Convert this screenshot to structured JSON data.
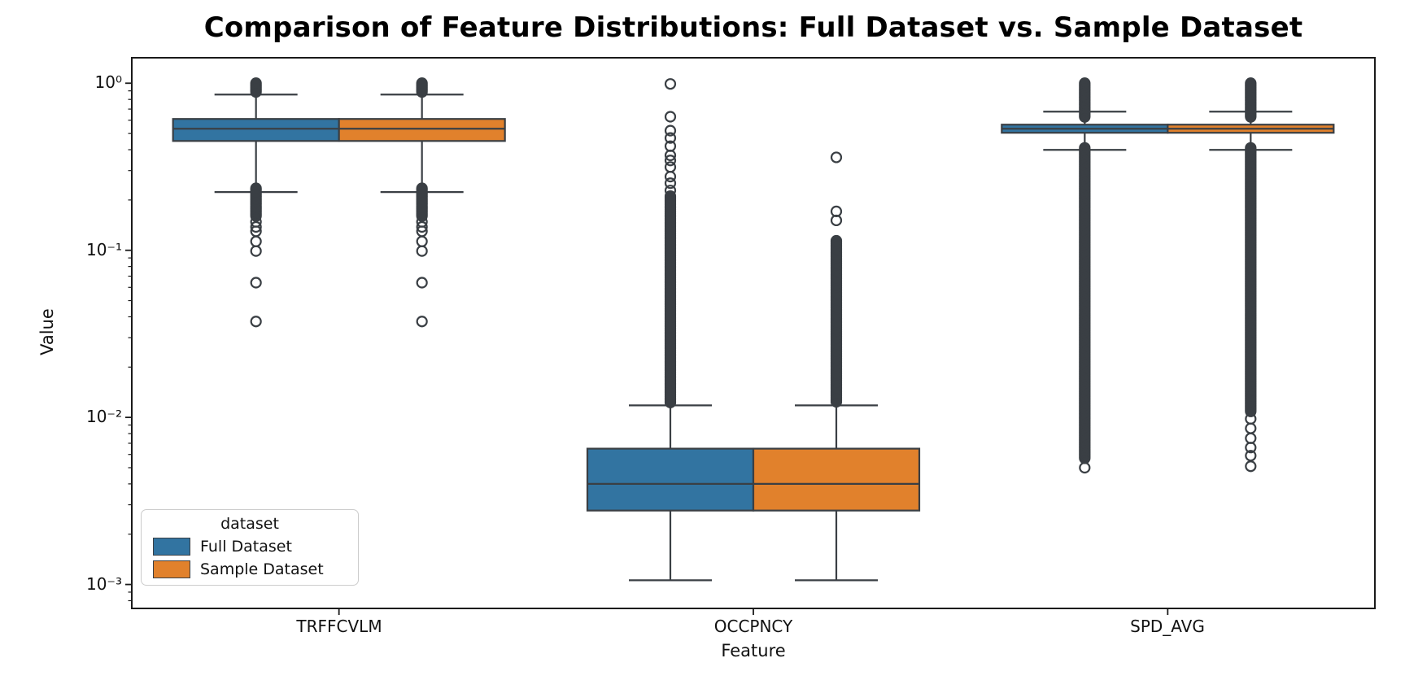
{
  "title": "Comparison of Feature Distributions: Full Dataset vs. Sample Dataset",
  "axes": {
    "xlabel": "Feature",
    "ylabel": "Value",
    "ytick_labels": [
      "10⁰",
      "10⁻¹",
      "10⁻²",
      "10⁻³"
    ]
  },
  "legend": {
    "title": "dataset",
    "entries": [
      {
        "label": "Full Dataset",
        "color": "#3274a1"
      },
      {
        "label": "Sample Dataset",
        "color": "#e1812c"
      }
    ]
  },
  "chart_data": {
    "type": "boxplot",
    "orientation": "vertical",
    "log_scale_y": true,
    "title": "Comparison of Feature Distributions: Full Dataset vs. Sample Dataset",
    "xlabel": "Feature",
    "ylabel": "Value",
    "ylim": [
      0.000719,
      1.42
    ],
    "yticks": [
      1,
      0.1,
      0.01,
      0.001
    ],
    "ytick_labels": [
      "10⁰",
      "10⁻¹",
      "10⁻²",
      "10⁻³"
    ],
    "grid": false,
    "legend_position": "lower left",
    "categories": [
      "TRFFCVLM",
      "OCCPNCY",
      "SPD_AVG"
    ],
    "line_color": "#3a3f44",
    "series": [
      {
        "name": "Full Dataset",
        "color": "#3274a1",
        "boxes": [
          {
            "category": "TRFFCVLM",
            "whisker_low": 0.223,
            "q1": 0.451,
            "median": 0.534,
            "q3": 0.611,
            "whisker_high": 0.855,
            "outliers_high_range": [
              0.87,
              1.0
            ],
            "outliers_high": [],
            "outliers_low_range": [
              0.16,
              0.235
            ],
            "outliers_low": [
              0.148,
              0.138,
              0.13,
              0.113,
              0.099,
              0.064,
              0.0375
            ]
          },
          {
            "category": "OCCPNCY",
            "whisker_low": 0.00106,
            "q1": 0.00277,
            "median": 0.004,
            "q3": 0.0065,
            "whisker_high": 0.0118,
            "outliers_high_range": [
              0.0122,
              0.211
            ],
            "outliers_high": [
              0.99,
              0.63,
              0.52,
              0.47,
              0.42,
              0.37,
              0.345,
              0.315,
              0.276,
              0.252,
              0.228
            ],
            "outliers_low_range": null,
            "outliers_low": []
          },
          {
            "category": "SPD_AVG",
            "whisker_low": 0.399,
            "q1": 0.505,
            "median": 0.534,
            "q3": 0.565,
            "whisker_high": 0.676,
            "outliers_high_range": [
              0.62,
              1.0
            ],
            "outliers_high": [],
            "outliers_low_range": [
              0.0056,
              0.41
            ],
            "outliers_low": [
              0.005
            ]
          }
        ]
      },
      {
        "name": "Sample Dataset",
        "color": "#e1812c",
        "boxes": [
          {
            "category": "TRFFCVLM",
            "whisker_low": 0.223,
            "q1": 0.451,
            "median": 0.534,
            "q3": 0.611,
            "whisker_high": 0.855,
            "outliers_high_range": [
              0.87,
              1.0
            ],
            "outliers_high": [],
            "outliers_low_range": [
              0.16,
              0.235
            ],
            "outliers_low": [
              0.148,
              0.138,
              0.13,
              0.113,
              0.099,
              0.064,
              0.0375
            ]
          },
          {
            "category": "OCCPNCY",
            "whisker_low": 0.00106,
            "q1": 0.00277,
            "median": 0.004,
            "q3": 0.0065,
            "whisker_high": 0.0118,
            "outliers_high_range": [
              0.0122,
              0.114
            ],
            "outliers_high": [
              0.36,
              0.171,
              0.151
            ],
            "outliers_low_range": null,
            "outliers_low": []
          },
          {
            "category": "SPD_AVG",
            "whisker_low": 0.399,
            "q1": 0.505,
            "median": 0.534,
            "q3": 0.565,
            "whisker_high": 0.676,
            "outliers_high_range": [
              0.62,
              1.0
            ],
            "outliers_high": [],
            "outliers_low_range": [
              0.0108,
              0.41
            ],
            "outliers_low": [
              0.0098,
              0.0086,
              0.0075,
              0.0066,
              0.0059,
              0.0051
            ]
          }
        ]
      }
    ]
  }
}
